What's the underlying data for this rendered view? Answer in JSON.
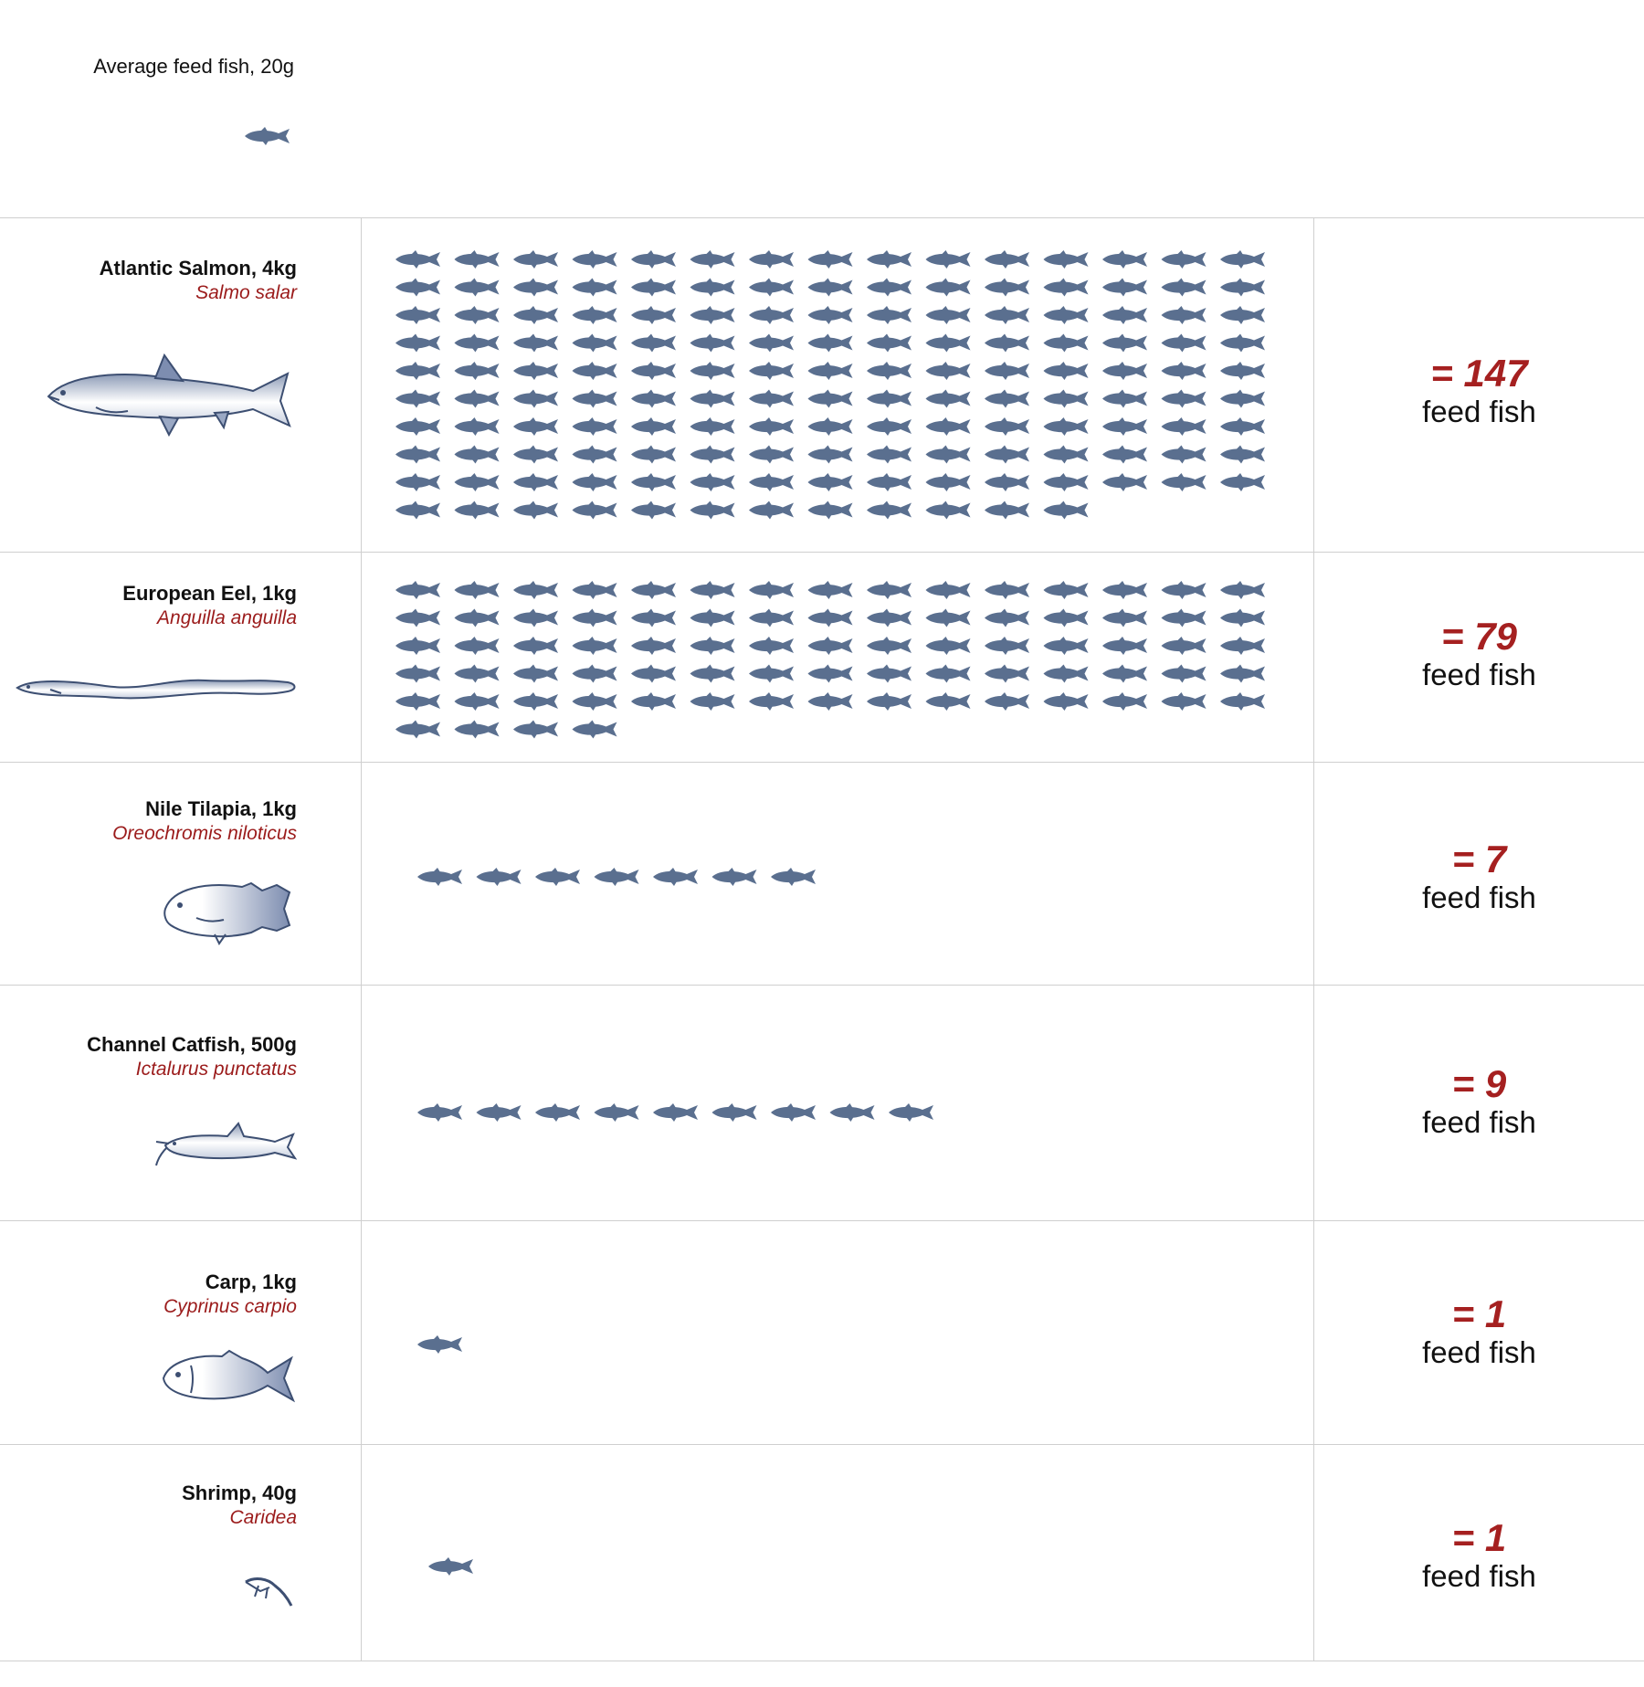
{
  "legend": {
    "label": "Average feed fish, 20g",
    "icon": "small-fish-icon"
  },
  "colors": {
    "fish_icon": "#5a6f8f",
    "accent": "#a52020",
    "rule": "#cfcfcf"
  },
  "chart_data": {
    "type": "pictogram",
    "unit_label": "feed fish",
    "categories": [
      "Atlantic Salmon, 4kg",
      "European Eel, 1kg",
      "Nile Tilapia, 1kg",
      "Channel Catfish, 500g",
      "Carp, 1kg",
      "Shrimp, 40g"
    ],
    "values": [
      147,
      79,
      7,
      9,
      1,
      1
    ]
  },
  "rows": [
    {
      "name": "Atlantic Salmon, 4kg",
      "sci": "Salmo salar",
      "value_text": "= 147",
      "unit": "feed fish",
      "count": 147,
      "illustration": "salmon-illustration"
    },
    {
      "name": "European Eel, 1kg",
      "sci": "Anguilla anguilla",
      "value_text": "= 79",
      "unit": "feed fish",
      "count": 79,
      "illustration": "eel-illustration"
    },
    {
      "name": "Nile Tilapia, 1kg",
      "sci": "Oreochromis niloticus",
      "value_text": "= 7",
      "unit": "feed fish",
      "count": 7,
      "illustration": "tilapia-illustration"
    },
    {
      "name": "Channel Catfish, 500g",
      "sci": "Ictalurus punctatus",
      "value_text": "= 9",
      "unit": "feed fish",
      "count": 9,
      "illustration": "catfish-illustration"
    },
    {
      "name": "Carp, 1kg",
      "sci": "Cyprinus carpio",
      "value_text": "= 1",
      "unit": "feed fish",
      "count": 1,
      "illustration": "carp-illustration"
    },
    {
      "name": "Shrimp, 40g",
      "sci": "Caridea",
      "value_text": "= 1",
      "unit": "feed fish",
      "count": 1,
      "illustration": "shrimp-illustration"
    }
  ]
}
